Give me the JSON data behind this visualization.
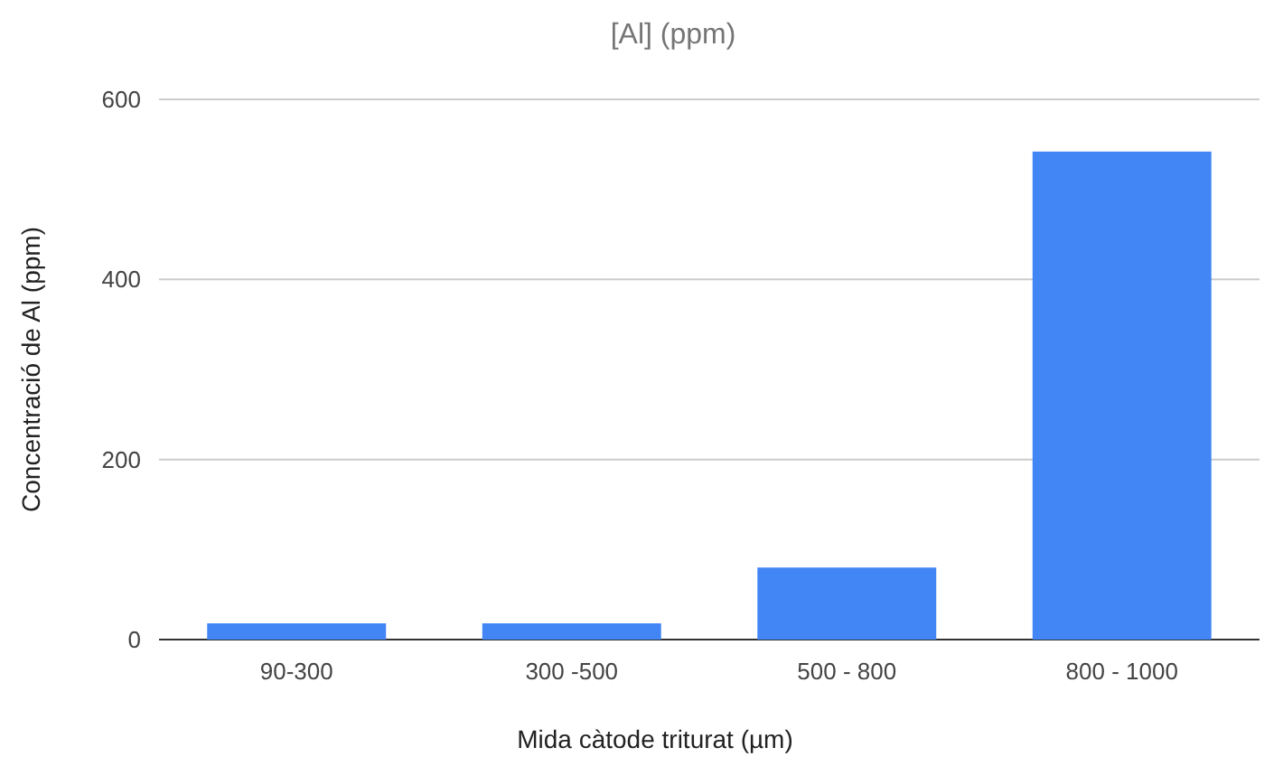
{
  "chart_data": {
    "type": "bar",
    "title": "[Al] (ppm)",
    "xlabel": "Mida càtode triturat (µm)",
    "ylabel": "Concentració de Al  (ppm)",
    "categories": [
      "90-300",
      "300 -500",
      "500 - 800",
      "800 - 1000"
    ],
    "values": [
      18,
      18,
      80,
      542
    ],
    "color": "#4285f4",
    "ylim": [
      0,
      600
    ],
    "yticks": [
      0,
      200,
      400,
      600
    ],
    "grid": "y"
  }
}
